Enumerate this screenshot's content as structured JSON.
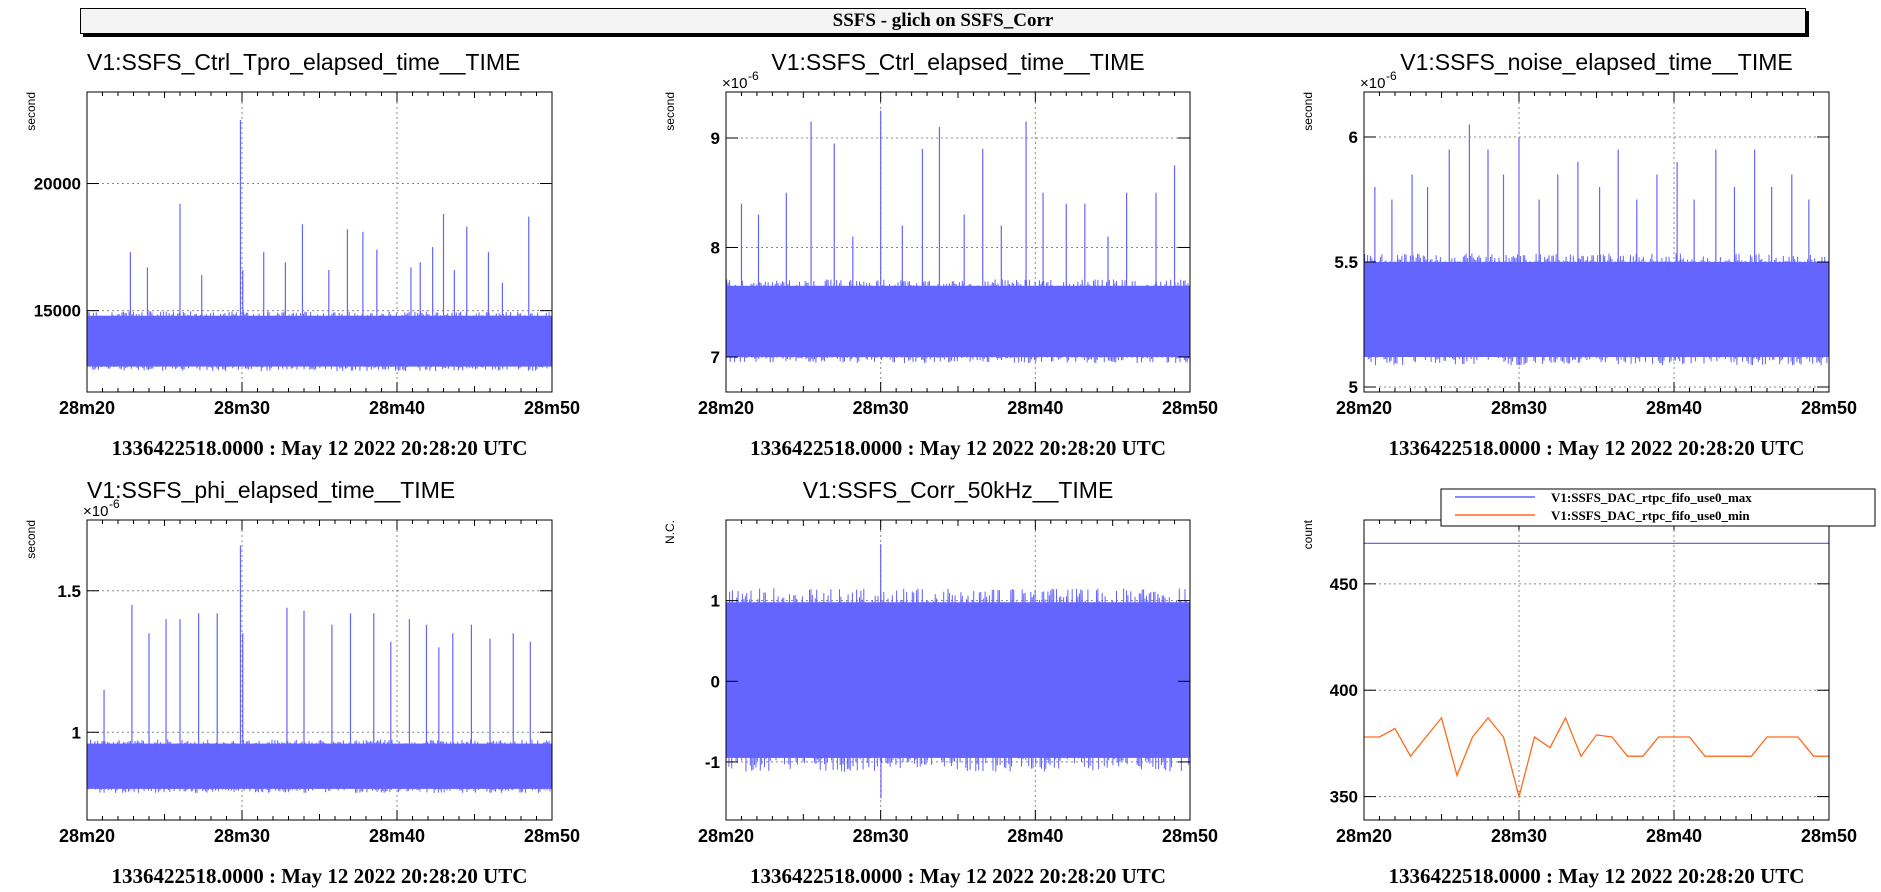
{
  "page": {
    "title": "SSFS - glich on  SSFS_Corr"
  },
  "colors": {
    "blue": "#6464ff",
    "orange": "#ff6a1a",
    "grid": "#888888"
  },
  "chart_data": [
    {
      "type": "line",
      "title": "V1:SSFS_Ctrl_Tpro_elapsed_time__TIME",
      "ylabel": "second",
      "exponent": "",
      "xlabel": "1336422518.0000 : May 12 2022 20:28:20 UTC",
      "x_ticks": [
        "28m20",
        "28m30",
        "28m40",
        "28m50"
      ],
      "y_ticks": [
        15000,
        20000
      ],
      "ylim": [
        11800,
        23600
      ],
      "xlim": [
        0,
        30
      ],
      "series": [
        {
          "color": "#6464ff",
          "band": [
            12800,
            14800
          ],
          "x": [
            2.8,
            3.9,
            6.0,
            7.4,
            9.9,
            10.05,
            11.4,
            12.8,
            13.9,
            15.6,
            16.8,
            17.8,
            18.7,
            20.9,
            21.5,
            22.3,
            23.0,
            23.7,
            24.5,
            25.9,
            26.8,
            28.5
          ],
          "y": [
            17300,
            16700,
            19200,
            16400,
            22500,
            16600,
            17300,
            16900,
            18400,
            16600,
            18200,
            18100,
            17400,
            16700,
            16900,
            17500,
            18800,
            16600,
            18300,
            17300,
            16100,
            18700
          ]
        }
      ]
    },
    {
      "type": "line",
      "title": "V1:SSFS_Ctrl_elapsed_time__TIME",
      "ylabel": "second",
      "exponent": "-6",
      "xlabel": "1336422518.0000 : May 12 2022 20:28:20 UTC",
      "x_ticks": [
        "28m20",
        "28m30",
        "28m40",
        "28m50"
      ],
      "y_ticks": [
        7,
        8,
        9
      ],
      "ylim": [
        6.68,
        9.42
      ],
      "xlim": [
        0,
        30
      ],
      "series": [
        {
          "color": "#6464ff",
          "band": [
            7.0,
            7.65
          ],
          "x": [
            1.0,
            2.1,
            3.9,
            5.5,
            7.0,
            8.2,
            10.0,
            11.4,
            12.7,
            13.8,
            15.4,
            16.6,
            17.8,
            19.4,
            20.5,
            22.0,
            23.2,
            24.7,
            25.9,
            27.8,
            29.0
          ],
          "y": [
            8.4,
            8.3,
            8.5,
            9.15,
            8.95,
            8.1,
            9.25,
            8.2,
            8.9,
            9.1,
            8.3,
            8.9,
            8.2,
            9.15,
            8.5,
            8.4,
            8.4,
            8.1,
            8.5,
            8.5,
            8.75
          ]
        }
      ]
    },
    {
      "type": "line",
      "title": "V1:SSFS_noise_elapsed_time__TIME",
      "ylabel": "second",
      "exponent": "-6",
      "xlabel": "1336422518.0000 : May 12 2022 20:28:20 UTC",
      "x_ticks": [
        "28m20",
        "28m30",
        "28m40",
        "28m50"
      ],
      "y_ticks": [
        5,
        5.5,
        6
      ],
      "ylim": [
        4.98,
        6.18
      ],
      "xlim": [
        0,
        30
      ],
      "series": [
        {
          "color": "#6464ff",
          "band": [
            5.12,
            5.5
          ],
          "x": [
            0.7,
            1.8,
            3.1,
            4.1,
            5.5,
            6.8,
            8.0,
            9.0,
            10.0,
            11.3,
            12.5,
            13.8,
            15.2,
            16.4,
            17.6,
            18.9,
            20.2,
            21.3,
            22.7,
            23.9,
            25.2,
            26.3,
            27.6,
            28.7
          ],
          "y": [
            5.8,
            5.75,
            5.85,
            5.8,
            5.95,
            6.05,
            5.95,
            5.85,
            6.0,
            5.75,
            5.85,
            5.9,
            5.8,
            5.95,
            5.75,
            5.85,
            5.9,
            5.75,
            5.95,
            5.8,
            5.95,
            5.8,
            5.85,
            5.75
          ]
        }
      ]
    },
    {
      "type": "line",
      "title": "V1:SSFS_phi_elapsed_time__TIME",
      "ylabel": "second",
      "exponent": "-6",
      "xlabel": "1336422518.0000 : May 12 2022 20:28:20 UTC",
      "x_ticks": [
        "28m20",
        "28m30",
        "28m40",
        "28m50"
      ],
      "y_ticks": [
        1,
        1.5
      ],
      "ylim": [
        0.69,
        1.75
      ],
      "xlim": [
        0,
        30
      ],
      "series": [
        {
          "color": "#6464ff",
          "band": [
            0.8,
            0.96
          ],
          "x": [
            1.1,
            2.9,
            4.0,
            5.1,
            6.0,
            7.2,
            8.4,
            9.9,
            10.05,
            12.9,
            14.0,
            15.8,
            17.0,
            18.5,
            19.6,
            20.8,
            21.9,
            22.7,
            23.6,
            24.8,
            26.0,
            27.5,
            28.6
          ],
          "y": [
            1.15,
            1.45,
            1.35,
            1.4,
            1.4,
            1.42,
            1.42,
            1.66,
            1.35,
            1.44,
            1.43,
            1.38,
            1.42,
            1.42,
            1.32,
            1.4,
            1.38,
            1.3,
            1.35,
            1.38,
            1.33,
            1.35,
            1.32
          ]
        }
      ]
    },
    {
      "type": "line",
      "title": "V1:SSFS_Corr_50kHz__TIME",
      "ylabel": "N.C.",
      "exponent": "",
      "xlabel": "1336422518.0000 : May 12 2022 20:28:20 UTC",
      "x_ticks": [
        "28m20",
        "28m30",
        "28m40",
        "28m50"
      ],
      "y_ticks": [
        -1,
        0,
        1
      ],
      "ylim": [
        -1.72,
        2.0
      ],
      "xlim": [
        0,
        30
      ],
      "series": [
        {
          "color": "#6464ff",
          "band": [
            -0.95,
            0.98
          ],
          "x": [
            10.0,
            10.02
          ],
          "y": [
            1.7,
            -1.45
          ]
        }
      ]
    },
    {
      "type": "line",
      "title": "",
      "ylabel": "count",
      "exponent": "",
      "xlabel": "1336422518.0000 : May 12 2022 20:28:20 UTC",
      "x_ticks": [
        "28m20",
        "28m30",
        "28m40",
        "28m50"
      ],
      "y_ticks": [
        350,
        400,
        450
      ],
      "ylim": [
        339,
        480
      ],
      "xlim": [
        0,
        30
      ],
      "legend": [
        "V1:SSFS_DAC_rtpc_fifo_use0_max",
        "V1:SSFS_DAC_rtpc_fifo_use0_min"
      ],
      "series": [
        {
          "name": "V1:SSFS_DAC_rtpc_fifo_use0_max",
          "color": "#6464ff",
          "x": [
            0,
            30
          ],
          "y": [
            469,
            469
          ]
        },
        {
          "name": "V1:SSFS_DAC_rtpc_fifo_use0_min",
          "color": "#ff6a1a",
          "x": [
            0,
            1,
            2,
            3,
            4,
            5,
            6,
            7,
            8,
            9,
            10,
            11,
            12,
            13,
            14,
            15,
            16,
            17,
            18,
            19,
            20,
            21,
            22,
            23,
            24,
            25,
            26,
            27,
            28,
            29,
            30
          ],
          "y": [
            378,
            378,
            382,
            369,
            378,
            387,
            360,
            378,
            387,
            378,
            350,
            378,
            373,
            387,
            369,
            379,
            378,
            369,
            369,
            378,
            378,
            378,
            369,
            369,
            369,
            369,
            378,
            378,
            378,
            369,
            369
          ]
        }
      ]
    }
  ]
}
